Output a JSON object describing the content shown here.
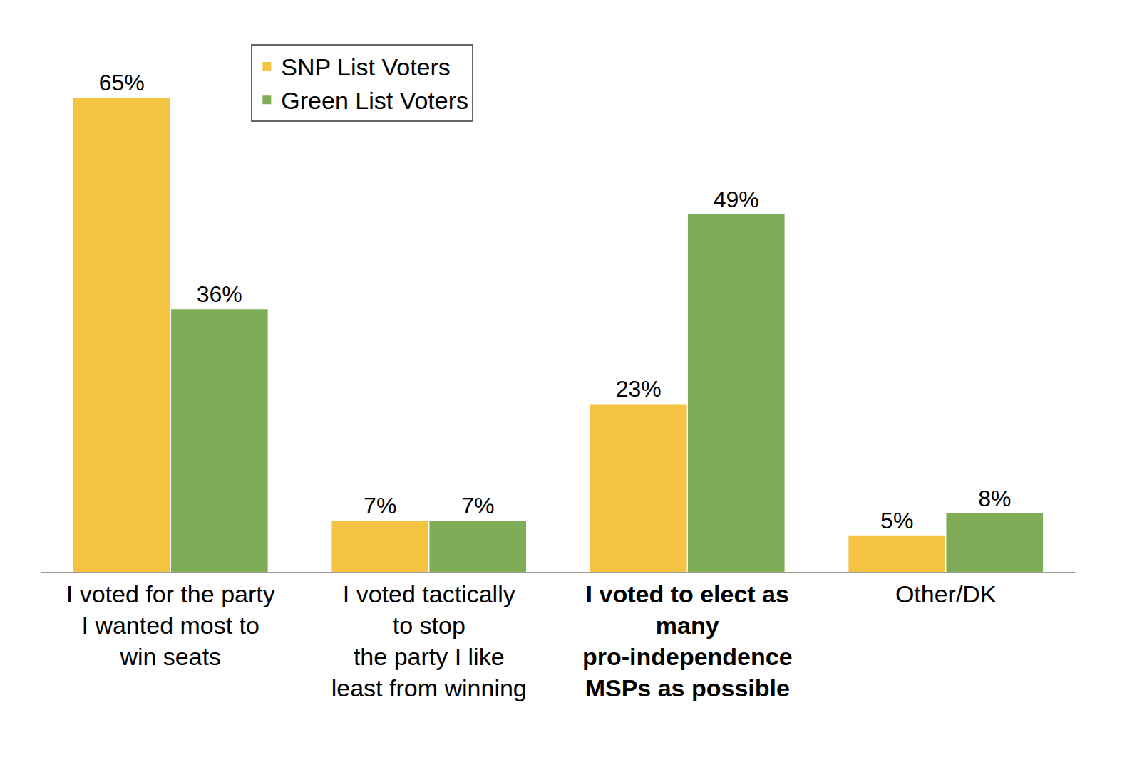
{
  "chart_data": {
    "type": "bar",
    "categories": [
      "I voted for the party\nI wanted most to\nwin seats",
      "I voted tactically\nto stop\nthe party I like\nleast from winning",
      "I voted to elect as\nmany\npro-independence\nMSPs as possible",
      "Other/DK"
    ],
    "series": [
      {
        "name": "SNP List Voters",
        "color": "#F5C342",
        "values": [
          65,
          7,
          23,
          5
        ],
        "value_labels": [
          "65%",
          "7%",
          "23%",
          "5%"
        ]
      },
      {
        "name": "Green List Voters",
        "color": "#7FAC56",
        "values": [
          36,
          7,
          49,
          8
        ],
        "value_labels": [
          "36%",
          "7%",
          "49%",
          "8%"
        ]
      }
    ],
    "ylim": [
      0,
      70
    ],
    "grid": false,
    "legend": "upper left",
    "data_labels": true,
    "tick_labels": "x"
  }
}
